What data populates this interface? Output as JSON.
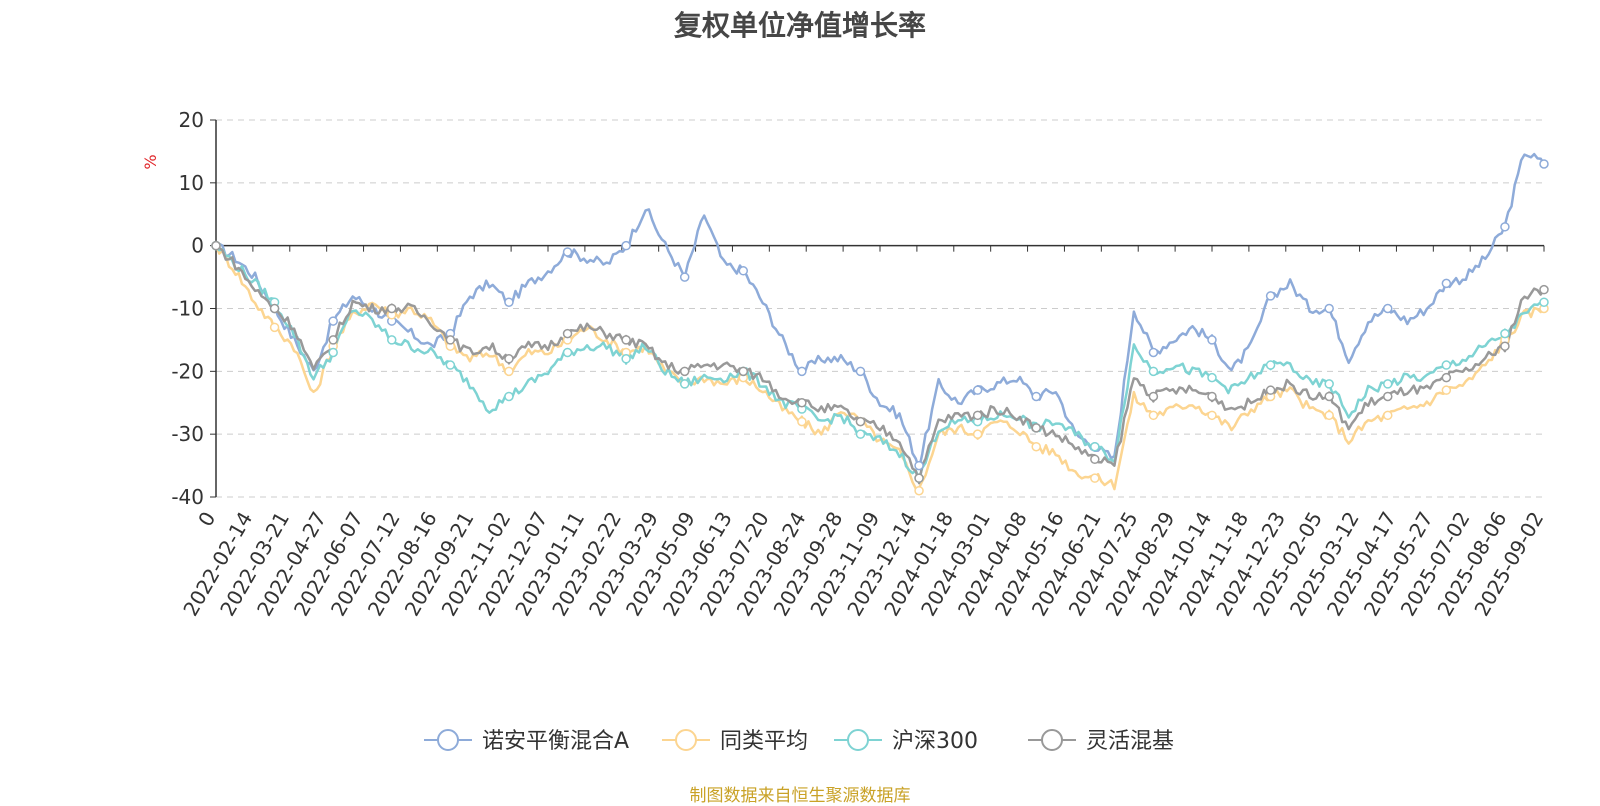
{
  "chart_data": {
    "type": "line",
    "title": "复权单位净值增长率",
    "ylabel": "%",
    "ylim": [
      -40,
      20
    ],
    "yticks": [
      20,
      10,
      0,
      -10,
      -20,
      -30,
      -40
    ],
    "x_tick_labels": [
      "0",
      "2022-02-14",
      "2022-03-21",
      "2022-04-27",
      "2022-06-07",
      "2022-07-12",
      "2022-08-16",
      "2022-09-21",
      "2022-11-02",
      "2022-12-07",
      "2023-01-11",
      "2023-02-22",
      "2023-03-29",
      "2023-05-09",
      "2023-06-13",
      "2023-07-20",
      "2023-08-24",
      "2023-09-28",
      "2023-11-09",
      "2023-12-14",
      "2024-01-18",
      "2024-03-01",
      "2024-04-08",
      "2024-05-16",
      "2024-06-21",
      "2024-07-25",
      "2024-08-29",
      "2024-10-14",
      "2024-11-18",
      "2024-12-23",
      "2025-02-05",
      "2025-03-12",
      "2025-04-17",
      "2025-05-27",
      "2025-07-02",
      "2025-08-06",
      "2025-09-02"
    ],
    "grid": true,
    "legend_position": "bottom",
    "series": [
      {
        "name": "诺安平衡混合A",
        "color": "#8eabd9",
        "values": [
          0,
          -2,
          -5,
          -10,
          -15,
          -20,
          -12,
          -8,
          -10,
          -12,
          -14,
          -16,
          -14,
          -8,
          -6,
          -9,
          -6,
          -4,
          -1,
          -2,
          -3,
          0,
          6,
          0,
          -5,
          5,
          -3,
          -4,
          -9,
          -15,
          -20,
          -18,
          -18,
          -20,
          -25,
          -27,
          -35,
          -22,
          -25,
          -23,
          -22,
          -21,
          -24,
          -23,
          -30,
          -32,
          -34,
          -10,
          -17,
          -15,
          -13,
          -15,
          -20,
          -16,
          -8,
          -6,
          -10,
          -10,
          -18,
          -12,
          -10,
          -12,
          -10,
          -6,
          -5,
          -2,
          3,
          15,
          13
        ]
      },
      {
        "name": "同类平均",
        "color": "#fcd591",
        "values": [
          0,
          -4,
          -9,
          -13,
          -16,
          -24,
          -16,
          -11,
          -9,
          -11,
          -10,
          -12,
          -16,
          -18,
          -17,
          -20,
          -17,
          -17,
          -15,
          -13,
          -15,
          -17,
          -16,
          -20,
          -22,
          -21,
          -22,
          -21,
          -23,
          -26,
          -28,
          -30,
          -26,
          -28,
          -31,
          -33,
          -39,
          -30,
          -29,
          -30,
          -28,
          -29,
          -32,
          -33,
          -36,
          -37,
          -38,
          -24,
          -27,
          -26,
          -25,
          -27,
          -29,
          -26,
          -24,
          -23,
          -26,
          -27,
          -31,
          -28,
          -27,
          -26,
          -25,
          -23,
          -22,
          -19,
          -15,
          -11,
          -10
        ]
      },
      {
        "name": "沪深300",
        "color": "#7ed3d3",
        "values": [
          0,
          -3,
          -6,
          -9,
          -14,
          -21,
          -17,
          -10,
          -12,
          -15,
          -16,
          -17,
          -19,
          -22,
          -26,
          -24,
          -22,
          -20,
          -17,
          -16,
          -16,
          -18,
          -16,
          -20,
          -22,
          -21,
          -21,
          -20,
          -22,
          -25,
          -26,
          -28,
          -27,
          -30,
          -31,
          -33,
          -37,
          -29,
          -28,
          -28,
          -27,
          -27,
          -29,
          -28,
          -30,
          -32,
          -34,
          -16,
          -20,
          -19,
          -20,
          -21,
          -23,
          -21,
          -19,
          -19,
          -22,
          -22,
          -27,
          -23,
          -22,
          -21,
          -21,
          -19,
          -18,
          -16,
          -14,
          -11,
          -9
        ]
      },
      {
        "name": "灵活混基",
        "color": "#999999",
        "values": [
          0,
          -3,
          -7,
          -10,
          -13,
          -20,
          -15,
          -9,
          -10,
          -10,
          -10,
          -12,
          -15,
          -17,
          -16,
          -18,
          -16,
          -16,
          -14,
          -13,
          -14,
          -15,
          -16,
          -19,
          -20,
          -19,
          -19,
          -20,
          -21,
          -24,
          -25,
          -26,
          -26,
          -28,
          -29,
          -31,
          -37,
          -28,
          -27,
          -27,
          -26,
          -27,
          -29,
          -30,
          -32,
          -34,
          -35,
          -21,
          -24,
          -23,
          -23,
          -24,
          -26,
          -25,
          -23,
          -22,
          -24,
          -24,
          -29,
          -25,
          -24,
          -23,
          -23,
          -21,
          -20,
          -18,
          -16,
          -8,
          -7
        ]
      }
    ]
  },
  "legend": {
    "items": [
      {
        "label": "诺安平衡混合A",
        "color": "#8eabd9"
      },
      {
        "label": "同类平均",
        "color": "#fcd591"
      },
      {
        "label": "沪深300",
        "color": "#7ed3d3"
      },
      {
        "label": "灵活混基",
        "color": "#999999"
      }
    ]
  },
  "source_note": "制图数据来自恒生聚源数据库",
  "colors": {
    "axis": "#333333",
    "grid": "#cccccc",
    "ylabel": "#e0262a",
    "source": "#c9a227"
  }
}
